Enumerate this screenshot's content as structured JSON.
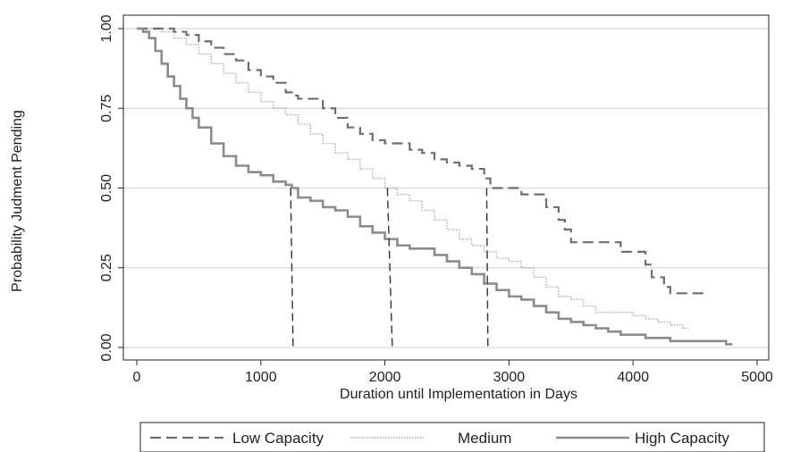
{
  "chart_data": {
    "type": "line",
    "title": "",
    "xlabel": "Duration until Implementation in Days",
    "ylabel": "Probability Judment Pending",
    "xlim": [
      0,
      5000
    ],
    "ylim": [
      0,
      1
    ],
    "x_ticks": [
      "0",
      "1000",
      "2000",
      "3000",
      "4000",
      "5000"
    ],
    "y_ticks": [
      "0.00",
      "0.25",
      "0.50",
      "0.75",
      "1.00"
    ],
    "grid": "horizontal",
    "legend_position": "bottom",
    "series": [
      {
        "name": "Low Capacity",
        "style": "dashed",
        "color": "#6e6e6e",
        "x": [
          0,
          200,
          300,
          400,
          500,
          600,
          700,
          800,
          900,
          1000,
          1100,
          1200,
          1250,
          1300,
          1450,
          1500,
          1600,
          1700,
          1800,
          1900,
          2000,
          2100,
          2200,
          2300,
          2400,
          2500,
          2600,
          2700,
          2800,
          2850,
          3000,
          3100,
          3200,
          3300,
          3400,
          3450,
          3500,
          3600,
          3700,
          3800,
          3900,
          4000,
          4100,
          4150,
          4200,
          4250,
          4300,
          4400,
          4500,
          4600
        ],
        "y": [
          1.0,
          1.0,
          0.99,
          0.98,
          0.96,
          0.94,
          0.92,
          0.9,
          0.87,
          0.85,
          0.83,
          0.8,
          0.79,
          0.78,
          0.78,
          0.75,
          0.72,
          0.69,
          0.67,
          0.65,
          0.64,
          0.64,
          0.62,
          0.61,
          0.59,
          0.58,
          0.57,
          0.56,
          0.53,
          0.5,
          0.5,
          0.48,
          0.48,
          0.44,
          0.4,
          0.37,
          0.33,
          0.33,
          0.33,
          0.33,
          0.3,
          0.3,
          0.26,
          0.22,
          0.22,
          0.19,
          0.17,
          0.17,
          0.17,
          0.17
        ]
      },
      {
        "name": "Medium",
        "style": "dotted",
        "color": "#a8a8a8",
        "x": [
          0,
          200,
          300,
          400,
          500,
          600,
          700,
          800,
          900,
          1000,
          1100,
          1200,
          1300,
          1400,
          1500,
          1600,
          1700,
          1800,
          1900,
          2000,
          2100,
          2200,
          2300,
          2400,
          2500,
          2600,
          2700,
          2800,
          2900,
          3000,
          3100,
          3200,
          3300,
          3400,
          3500,
          3600,
          3700,
          3800,
          3900,
          4000,
          4100,
          4200,
          4300,
          4400,
          4450
        ],
        "y": [
          1.0,
          0.99,
          0.97,
          0.95,
          0.92,
          0.89,
          0.86,
          0.83,
          0.8,
          0.77,
          0.75,
          0.73,
          0.7,
          0.67,
          0.64,
          0.61,
          0.59,
          0.56,
          0.53,
          0.5,
          0.48,
          0.46,
          0.43,
          0.4,
          0.37,
          0.34,
          0.32,
          0.3,
          0.28,
          0.27,
          0.25,
          0.22,
          0.19,
          0.16,
          0.15,
          0.13,
          0.11,
          0.11,
          0.11,
          0.1,
          0.09,
          0.08,
          0.07,
          0.06,
          0.06
        ]
      },
      {
        "name": "High Capacity",
        "style": "solid",
        "color": "#8c8c8c",
        "x": [
          0,
          50,
          100,
          150,
          200,
          250,
          300,
          350,
          400,
          450,
          500,
          600,
          700,
          800,
          900,
          1000,
          1100,
          1200,
          1250,
          1300,
          1400,
          1500,
          1600,
          1700,
          1800,
          1900,
          2000,
          2100,
          2200,
          2300,
          2400,
          2500,
          2600,
          2700,
          2800,
          2900,
          3000,
          3100,
          3200,
          3300,
          3400,
          3500,
          3600,
          3700,
          3800,
          3900,
          4000,
          4100,
          4200,
          4300,
          4400,
          4500,
          4600,
          4700,
          4750,
          4800
        ],
        "y": [
          1.0,
          0.99,
          0.97,
          0.93,
          0.89,
          0.85,
          0.82,
          0.78,
          0.75,
          0.72,
          0.69,
          0.64,
          0.6,
          0.57,
          0.55,
          0.54,
          0.52,
          0.51,
          0.5,
          0.47,
          0.46,
          0.44,
          0.43,
          0.41,
          0.38,
          0.36,
          0.34,
          0.32,
          0.31,
          0.31,
          0.29,
          0.27,
          0.25,
          0.23,
          0.2,
          0.18,
          0.16,
          0.15,
          0.13,
          0.11,
          0.09,
          0.08,
          0.07,
          0.06,
          0.05,
          0.04,
          0.04,
          0.03,
          0.03,
          0.02,
          0.02,
          0.02,
          0.02,
          0.02,
          0.01,
          0.01
        ]
      }
    ],
    "median_lines": [
      {
        "series": "High Capacity",
        "x_top": 1240,
        "x_bottom": 1260
      },
      {
        "series": "Medium",
        "x_top": 2020,
        "x_bottom": 2060
      },
      {
        "series": "Low Capacity",
        "x_top": 2820,
        "x_bottom": 2830
      }
    ]
  }
}
